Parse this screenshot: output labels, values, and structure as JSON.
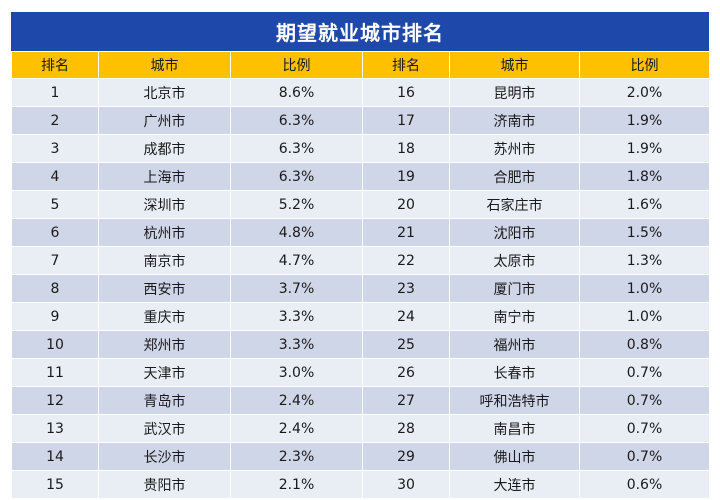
{
  "title": "期望就业城市排名",
  "headers": [
    "排名",
    "城市",
    "比例",
    "排名",
    "城市",
    "比例"
  ],
  "rows": [
    [
      "1",
      "北京市",
      "8.6%",
      "16",
      "昆明市",
      "2.0%"
    ],
    [
      "2",
      "广州市",
      "6.3%",
      "17",
      "济南市",
      "1.9%"
    ],
    [
      "3",
      "成都市",
      "6.3%",
      "18",
      "苏州市",
      "1.9%"
    ],
    [
      "4",
      "上海市",
      "6.3%",
      "19",
      "合肥市",
      "1.8%"
    ],
    [
      "5",
      "深圳市",
      "5.2%",
      "20",
      "石家庄市",
      "1.6%"
    ],
    [
      "6",
      "杭州市",
      "4.8%",
      "21",
      "沈阳市",
      "1.5%"
    ],
    [
      "7",
      "南京市",
      "4.7%",
      "22",
      "太原市",
      "1.3%"
    ],
    [
      "8",
      "西安市",
      "3.7%",
      "23",
      "厦门市",
      "1.0%"
    ],
    [
      "9",
      "重庆市",
      "3.3%",
      "24",
      "南宁市",
      "1.0%"
    ],
    [
      "10",
      "郑州市",
      "3.3%",
      "25",
      "福州市",
      "0.8%"
    ],
    [
      "11",
      "天津市",
      "3.0%",
      "26",
      "长春市",
      "0.7%"
    ],
    [
      "12",
      "青岛市",
      "2.4%",
      "27",
      "呼和浩特市",
      "0.7%"
    ],
    [
      "13",
      "武汉市",
      "2.4%",
      "28",
      "南昌市",
      "0.7%"
    ],
    [
      "14",
      "长沙市",
      "2.3%",
      "29",
      "佛山市",
      "0.7%"
    ],
    [
      "15",
      "贵阳市",
      "2.1%",
      "30",
      "大连市",
      "0.6%"
    ]
  ],
  "colors": {
    "title_bg": "#1f48ab",
    "header_bg": "#ffc000",
    "row_light": "#e9edf4",
    "row_dark": "#cfd6e8"
  }
}
